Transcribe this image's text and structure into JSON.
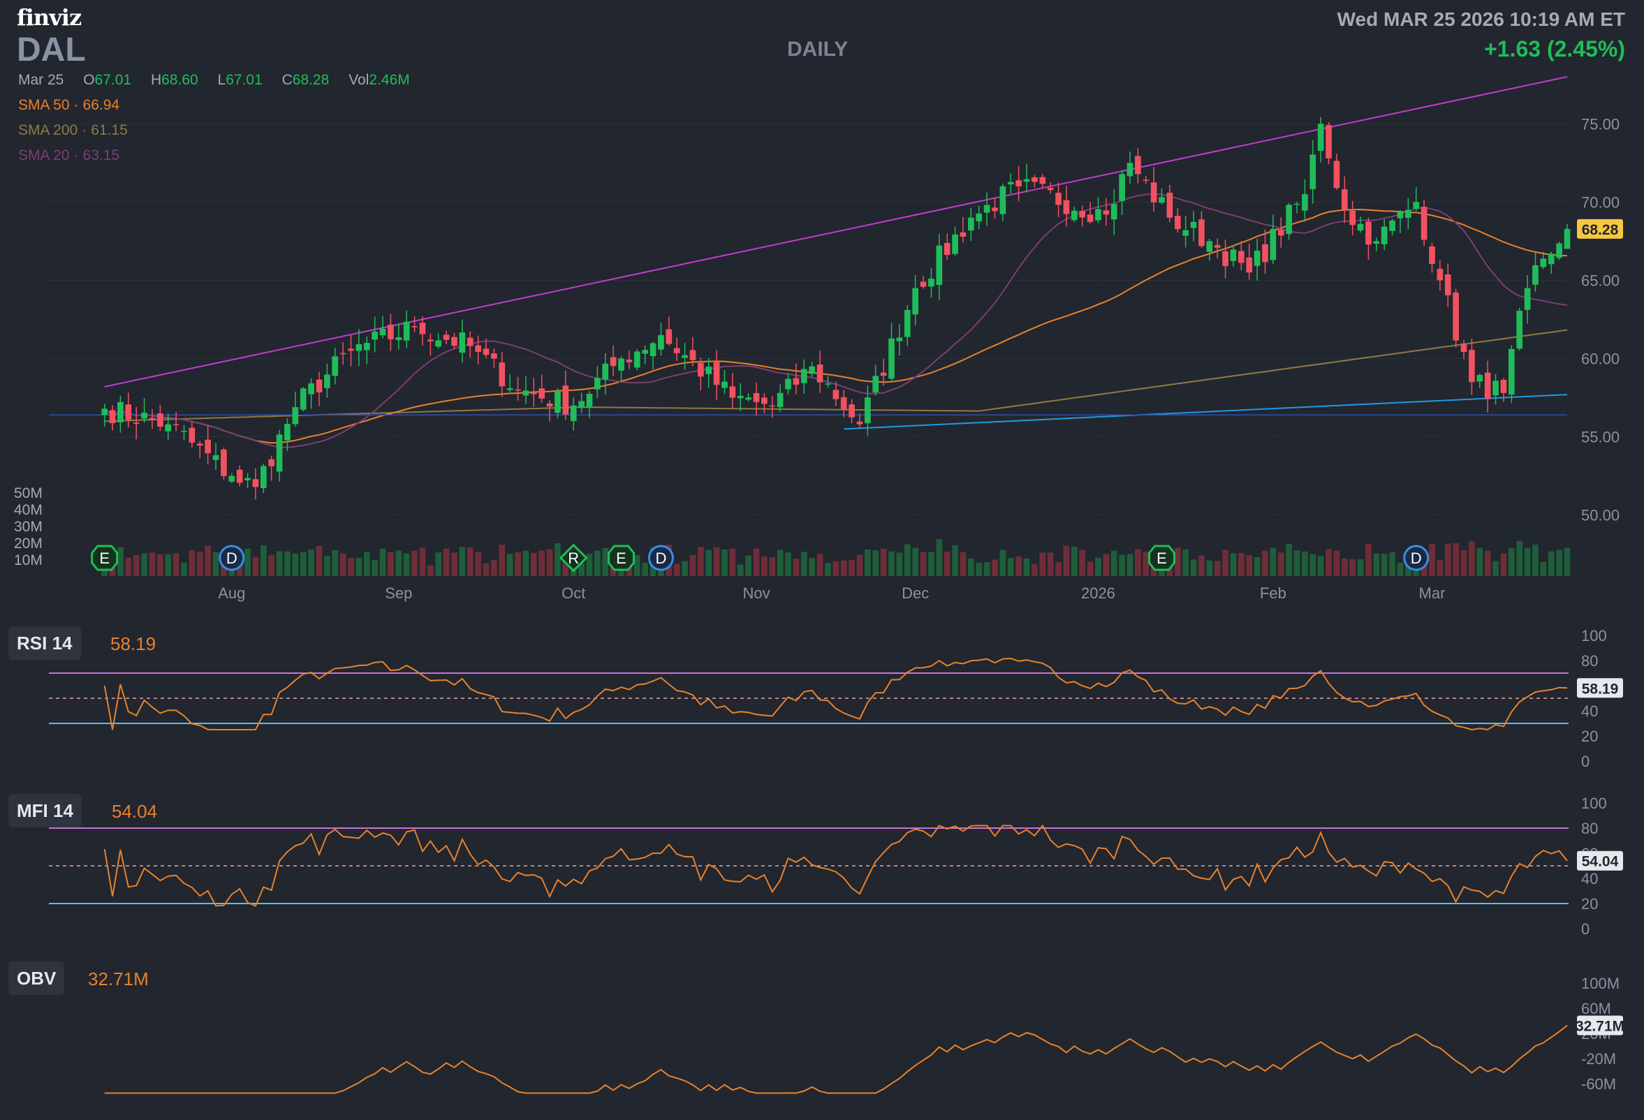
{
  "header": {
    "logo": "finviz",
    "ticker": "DAL",
    "period": "DAILY",
    "datetime": "Wed MAR 25 2026 10:19 AM ET",
    "change": "+1.63 (2.45%)"
  },
  "ohlc": {
    "date": "Mar 25",
    "o_label": "O",
    "o": "67.01",
    "h_label": "H",
    "h": "68.60",
    "l_label": "L",
    "l": "67.01",
    "c_label": "C",
    "c": "68.28",
    "vol_label": "Vol",
    "vol": "2.46M"
  },
  "sma_legend": [
    {
      "label": "SMA 50",
      "value": "66.94",
      "color": "#e8822a"
    },
    {
      "label": "SMA 200",
      "value": "61.15",
      "color": "#8f7a45"
    },
    {
      "label": "SMA 20",
      "value": "63.15",
      "color": "#7a3f73"
    }
  ],
  "colors": {
    "up": "#1fbd5a",
    "down": "#f2525f",
    "vol_up": "#1e5e3a",
    "vol_down": "#6e2e38",
    "trendline_upper": "#c23ccf",
    "trendline_lower": "#1f9ae0",
    "support": "#2e4fa8",
    "rsi": "#e8822a",
    "overbought": "#c874d9",
    "oversold": "#4fc3e8",
    "price_tag": "#f5c842"
  },
  "chart_data": [
    {
      "type": "candlestick",
      "title": "DAL",
      "price_axis_ticks": [
        "75.00",
        "70.00",
        "65.00",
        "60.00",
        "55.00",
        "50.00"
      ],
      "volume_axis_ticks": [
        "50M",
        "40M",
        "30M",
        "20M",
        "10M"
      ],
      "x_tick_labels": [
        "Aug",
        "Sep",
        "Oct",
        "Nov",
        "Dec",
        "2026",
        "Feb",
        "Mar"
      ],
      "last_price": "68.28",
      "ylim": [
        47,
        78
      ],
      "event_markers": [
        {
          "label": "E",
          "date": "Jul 10"
        },
        {
          "label": "D",
          "date": "Aug 1"
        },
        {
          "label": "R",
          "date": "Oct 1"
        },
        {
          "label": "E",
          "date": "Oct 9"
        },
        {
          "label": "D",
          "date": "Oct 16"
        },
        {
          "label": "E",
          "date": "Jan 13"
        },
        {
          "label": "D",
          "date": "Feb 26"
        }
      ],
      "anchors": [
        {
          "date": "Jul 10",
          "close": 56.8
        },
        {
          "date": "Jul 22",
          "close": 55.8
        },
        {
          "date": "Aug 1",
          "close": 52.5
        },
        {
          "date": "Aug 6",
          "close": 51.8
        },
        {
          "date": "Aug 13",
          "close": 56.9
        },
        {
          "date": "Aug 22",
          "close": 60.5
        },
        {
          "date": "Sep 3",
          "close": 62.0
        },
        {
          "date": "Sep 12",
          "close": 60.8
        },
        {
          "date": "Sep 22",
          "close": 58.0
        },
        {
          "date": "Oct 1",
          "close": 57.0
        },
        {
          "date": "Oct 9",
          "close": 60.0
        },
        {
          "date": "Oct 16",
          "close": 61.5
        },
        {
          "date": "Oct 29",
          "close": 57.5
        },
        {
          "date": "Nov 5",
          "close": 57.0
        },
        {
          "date": "Nov 12",
          "close": 59.5
        },
        {
          "date": "Nov 20",
          "close": 55.8
        },
        {
          "date": "Dec 1",
          "close": 64.5
        },
        {
          "date": "Dec 10",
          "close": 69.0
        },
        {
          "date": "Dec 18",
          "close": 71.0
        },
        {
          "date": "Jan 2",
          "close": 69.2
        },
        {
          "date": "Jan 7",
          "close": 72.5
        },
        {
          "date": "Jan 14",
          "close": 69.0
        },
        {
          "date": "Jan 21",
          "close": 67.5
        },
        {
          "date": "Jan 28",
          "close": 65.5
        },
        {
          "date": "Feb 6",
          "close": 70.5
        },
        {
          "date": "Feb 10",
          "close": 75.0
        },
        {
          "date": "Feb 13",
          "close": 69.5
        },
        {
          "date": "Feb 19",
          "close": 67.5
        },
        {
          "date": "Feb 26",
          "close": 70.0
        },
        {
          "date": "Mar 3",
          "close": 65.0
        },
        {
          "date": "Mar 9",
          "close": 58.5
        },
        {
          "date": "Mar 13",
          "close": 57.8
        },
        {
          "date": "Mar 18",
          "close": 64.5
        },
        {
          "date": "Mar 23",
          "close": 66.7
        },
        {
          "date": "Mar 25",
          "close": 68.28
        }
      ],
      "series": [
        {
          "name": "SMA 50",
          "last": 66.94
        },
        {
          "name": "SMA 200",
          "last": 61.15
        },
        {
          "name": "SMA 20",
          "last": 63.15
        }
      ],
      "trendlines": [
        {
          "from": {
            "date": "Jul 10",
            "price": 58.2
          },
          "to": {
            "date": "Mar 25",
            "price": 78.0
          }
        },
        {
          "from": {
            "date": "Nov 18",
            "price": 55.5
          },
          "to": {
            "date": "Mar 25",
            "price": 57.7
          }
        },
        {
          "from": {
            "date": "Jul 1",
            "price": 56.4
          },
          "to": {
            "date": "Mar 25",
            "price": 56.4
          }
        }
      ]
    },
    {
      "type": "line",
      "title": "RSI 14",
      "last_value": "58.19",
      "ylim": [
        0,
        100
      ],
      "y_ticks": [
        "100",
        "80",
        "60",
        "40",
        "20",
        "0"
      ],
      "bands": [
        70,
        50,
        30
      ]
    },
    {
      "type": "line",
      "title": "MFI 14",
      "last_value": "54.04",
      "ylim": [
        0,
        100
      ],
      "y_ticks": [
        "100",
        "80",
        "60",
        "40",
        "20",
        "0"
      ],
      "bands": [
        80,
        50,
        20
      ]
    },
    {
      "type": "line",
      "title": "OBV",
      "last_value": "32.71M",
      "ylim": [
        -80,
        120
      ],
      "y_ticks": [
        "100M",
        "60M",
        "20M",
        "-20M",
        "-60M"
      ]
    }
  ]
}
